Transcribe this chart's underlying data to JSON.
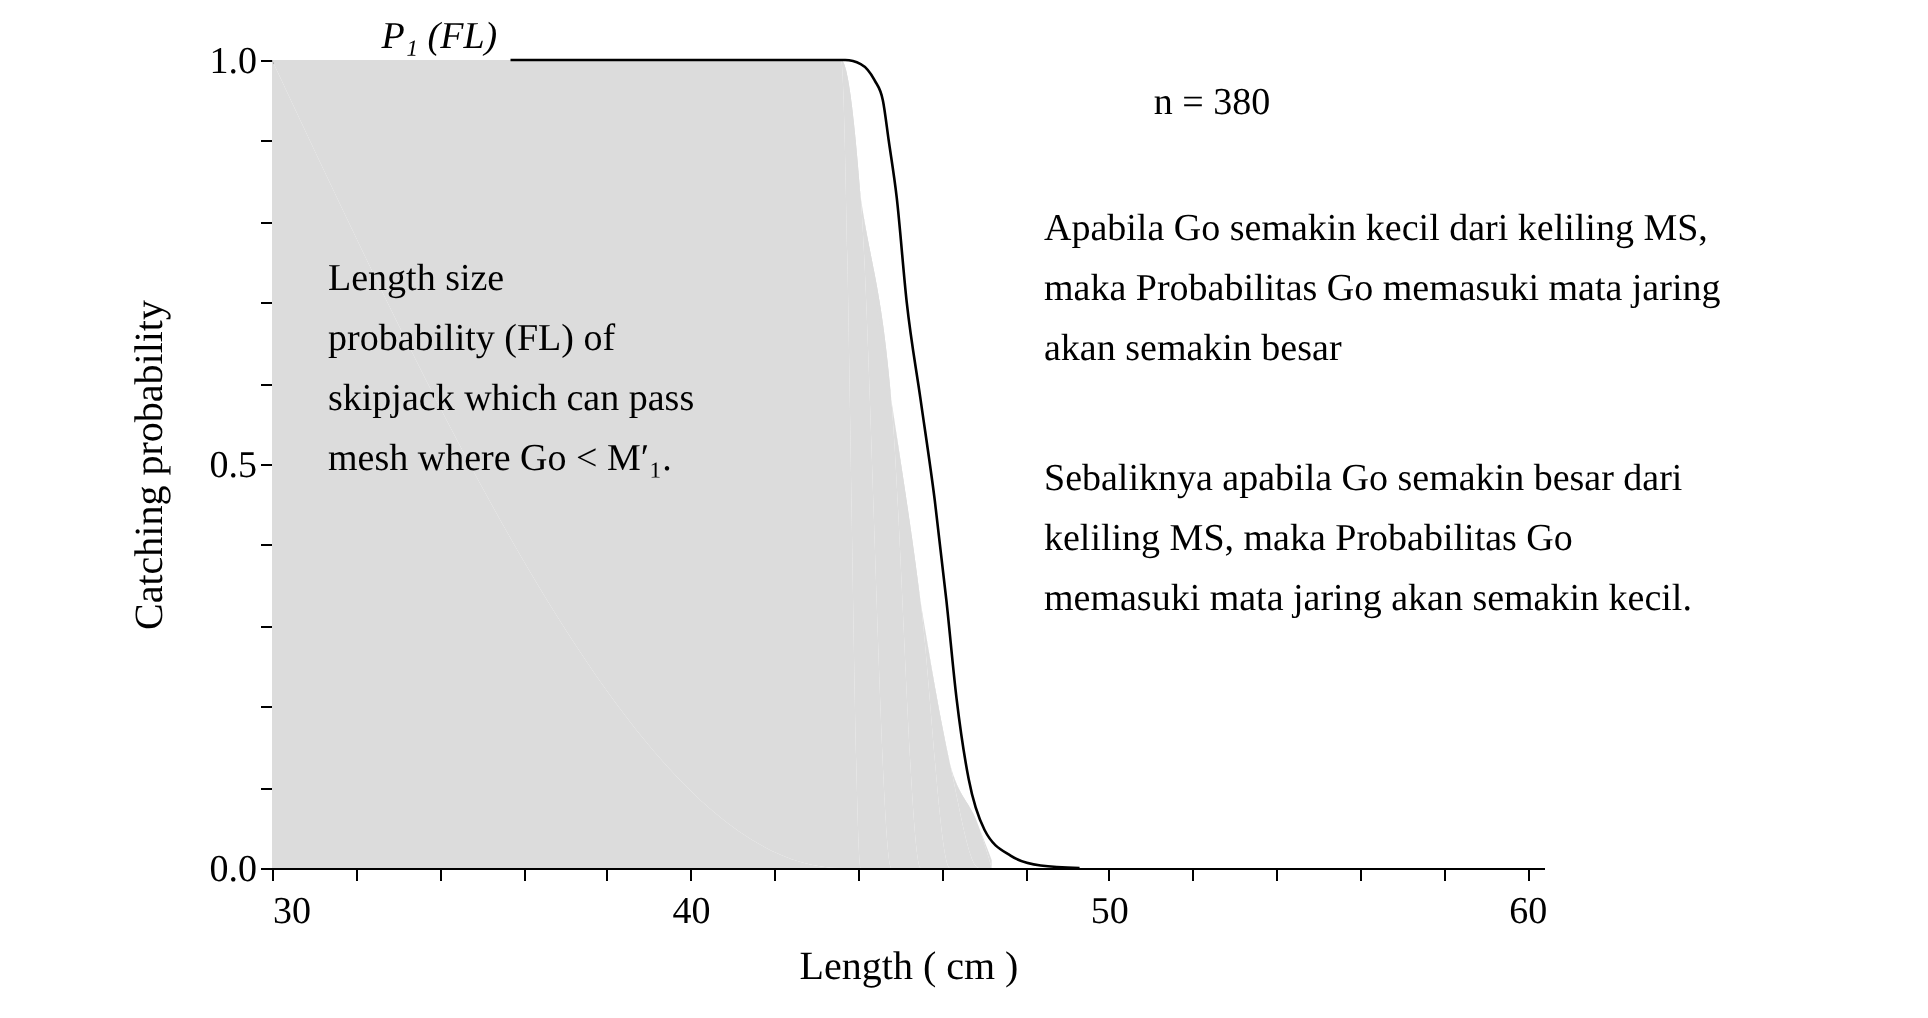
{
  "chart_data": {
    "type": "line",
    "xlabel": "Length ( cm )",
    "ylabel": "Catching probability",
    "xlim": [
      30,
      60.4
    ],
    "ylim": [
      0,
      1
    ],
    "xticks": [
      30,
      {
        "value": 32,
        "label": null
      },
      {
        "value": 34,
        "label": null
      },
      {
        "value": 36,
        "label": null
      },
      {
        "value": 38,
        "label": null
      },
      40,
      {
        "value": 42,
        "label": null
      },
      {
        "value": 44,
        "label": null
      },
      {
        "value": 46,
        "label": null
      },
      {
        "value": 48,
        "label": null
      },
      50,
      {
        "value": 52,
        "label": null
      },
      {
        "value": 54,
        "label": null
      },
      {
        "value": 56,
        "label": null
      },
      {
        "value": 58,
        "label": null
      },
      60
    ],
    "yticks": [
      {
        "value": 0,
        "label": "0.0"
      },
      {
        "value": 0.1,
        "label": null
      },
      {
        "value": 0.2,
        "label": null
      },
      {
        "value": 0.3,
        "label": null
      },
      {
        "value": 0.4,
        "label": null
      },
      0.5,
      {
        "value": 0.6,
        "label": null
      },
      {
        "value": 0.7,
        "label": null
      },
      {
        "value": 0.8,
        "label": null
      },
      {
        "value": 0.9,
        "label": null
      },
      {
        "value": 1,
        "label": "1.0"
      }
    ],
    "grid": false,
    "marker": "none",
    "series": [
      {
        "type": "area",
        "color": "#dcdcdc",
        "x": [
          30,
          43.6,
          44.07,
          44.8,
          45.5,
          46.2,
          46.9,
          47.2
        ],
        "values": [
          1,
          1,
          0.83,
          0.58,
          0.33,
          0.13,
          0.05,
          0.01
        ]
      },
      {
        "color": "#000000",
        "line_style": "solid",
        "x": [
          35.7,
          43.7,
          44.07,
          44.4,
          44.6,
          44.74,
          44.93,
          45.17,
          45.5,
          45.84,
          46.12,
          46.36,
          46.65,
          47.03,
          47.66,
          48.37,
          49.3
        ],
        "values": [
          1,
          1,
          0.995,
          0.975,
          0.95,
          0.9,
          0.83,
          0.7,
          0.58,
          0.455,
          0.33,
          0.21,
          0.11,
          0.047,
          0.015,
          0.003,
          0
        ]
      }
    ],
    "annotations": [
      {
        "text": "P₁ (FL)",
        "x": 34.0,
        "y": 1.0
      },
      "n = 380",
      "Length size\nprobability (FL) of\nskipjack which can pass\nmesh where Go <  M′₁.",
      "Apabila Go semakin kecil dari keliling MS,\nmaka Probabilitas Go memasuki mata jaring\nakan semakin besar",
      "Sebaliknya apabila Go semakin besar dari\nkeliling MS, maka Probabilitas Go\nmemasuki mata jaring akan semakin kecil."
    ]
  }
}
